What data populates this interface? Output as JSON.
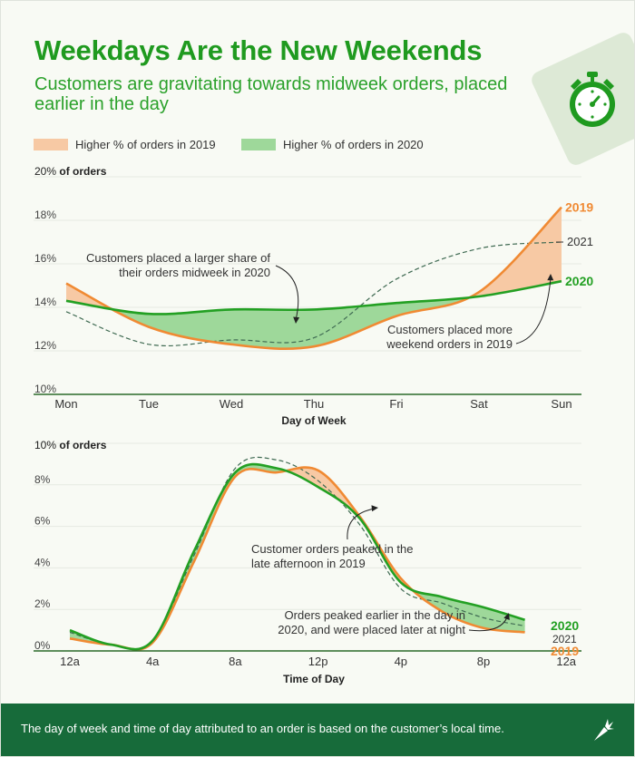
{
  "header": {
    "title": "Weekdays Are the New Weekends",
    "subtitle": "Customers are gravitating towards midweek orders, placed earlier in the day"
  },
  "legend": {
    "items": [
      {
        "label": "Higher % of orders in 2019",
        "color": "#f7c9a4"
      },
      {
        "label": "Higher % of orders in 2020",
        "color": "#9ed89a"
      }
    ]
  },
  "colors": {
    "y2019": "#f08a33",
    "y2020": "#23a023",
    "y2021": "#3f6a52",
    "fill2019": "#f7c9a4",
    "fill2020": "#9ed89a"
  },
  "chart_data": [
    {
      "type": "line",
      "xlabel": "Day of Week",
      "ylabel": "of orders",
      "ylim": [
        10,
        20
      ],
      "yticks": [
        "10%",
        "12%",
        "14%",
        "16%",
        "18%",
        "20%"
      ],
      "categories": [
        "Mon",
        "Tue",
        "Wed",
        "Thu",
        "Fri",
        "Sat",
        "Sun"
      ],
      "series": [
        {
          "name": "2019",
          "values": [
            15.1,
            13.1,
            12.3,
            12.2,
            13.6,
            14.7,
            18.6
          ]
        },
        {
          "name": "2020",
          "values": [
            14.3,
            13.7,
            13.9,
            13.9,
            14.2,
            14.5,
            15.2
          ]
        },
        {
          "name": "2021",
          "values": [
            13.8,
            12.3,
            12.5,
            12.6,
            15.3,
            16.7,
            17.0
          ]
        }
      ],
      "annotations": [
        {
          "text": "Customers placed a larger share of their orders midweek in 2020",
          "lines": [
            "Customers placed a larger share of",
            "their orders midweek in 2020"
          ]
        },
        {
          "text": "Customers placed more weekend orders in 2019",
          "lines": [
            "Customers placed more",
            "weekend orders in 2019"
          ]
        }
      ]
    },
    {
      "type": "line",
      "xlabel": "Time of Day",
      "ylabel": "of orders",
      "ylim": [
        0,
        10
      ],
      "yticks": [
        "0%",
        "2%",
        "4%",
        "6%",
        "8%",
        "10%"
      ],
      "x": [
        0,
        2,
        4,
        6,
        8,
        10,
        12,
        14,
        16,
        18,
        20,
        22
      ],
      "xticks": [
        "12a",
        "4a",
        "8a",
        "12p",
        "4p",
        "8p",
        "12a"
      ],
      "xtick_positions": [
        0,
        4,
        8,
        12,
        16,
        20,
        24
      ],
      "series": [
        {
          "name": "2019",
          "values": [
            0.6,
            0.3,
            0.4,
            4.3,
            8.4,
            8.6,
            8.7,
            6.5,
            3.5,
            1.9,
            1.1,
            0.9
          ]
        },
        {
          "name": "2020",
          "values": [
            1.0,
            0.3,
            0.5,
            4.8,
            8.6,
            8.8,
            7.9,
            6.4,
            3.3,
            2.6,
            2.1,
            1.5
          ]
        },
        {
          "name": "2021",
          "values": [
            0.9,
            0.3,
            0.5,
            4.6,
            8.8,
            9.2,
            8.2,
            6.1,
            3.0,
            2.3,
            1.6,
            1.2
          ]
        }
      ],
      "annotations": [
        {
          "text": "Customer orders peaked in the late afternoon in 2019",
          "lines": [
            "Customer orders peaked in the",
            "late afternoon in 2019"
          ]
        },
        {
          "text": "Orders peaked earlier in the day in 2020, and were placed later at night",
          "lines": [
            "Orders peaked earlier in the day in",
            "2020, and were placed later at night"
          ]
        }
      ]
    }
  ],
  "footer": {
    "note": "The day of week and time of day attributed to an order is based on the customer’s local time."
  }
}
